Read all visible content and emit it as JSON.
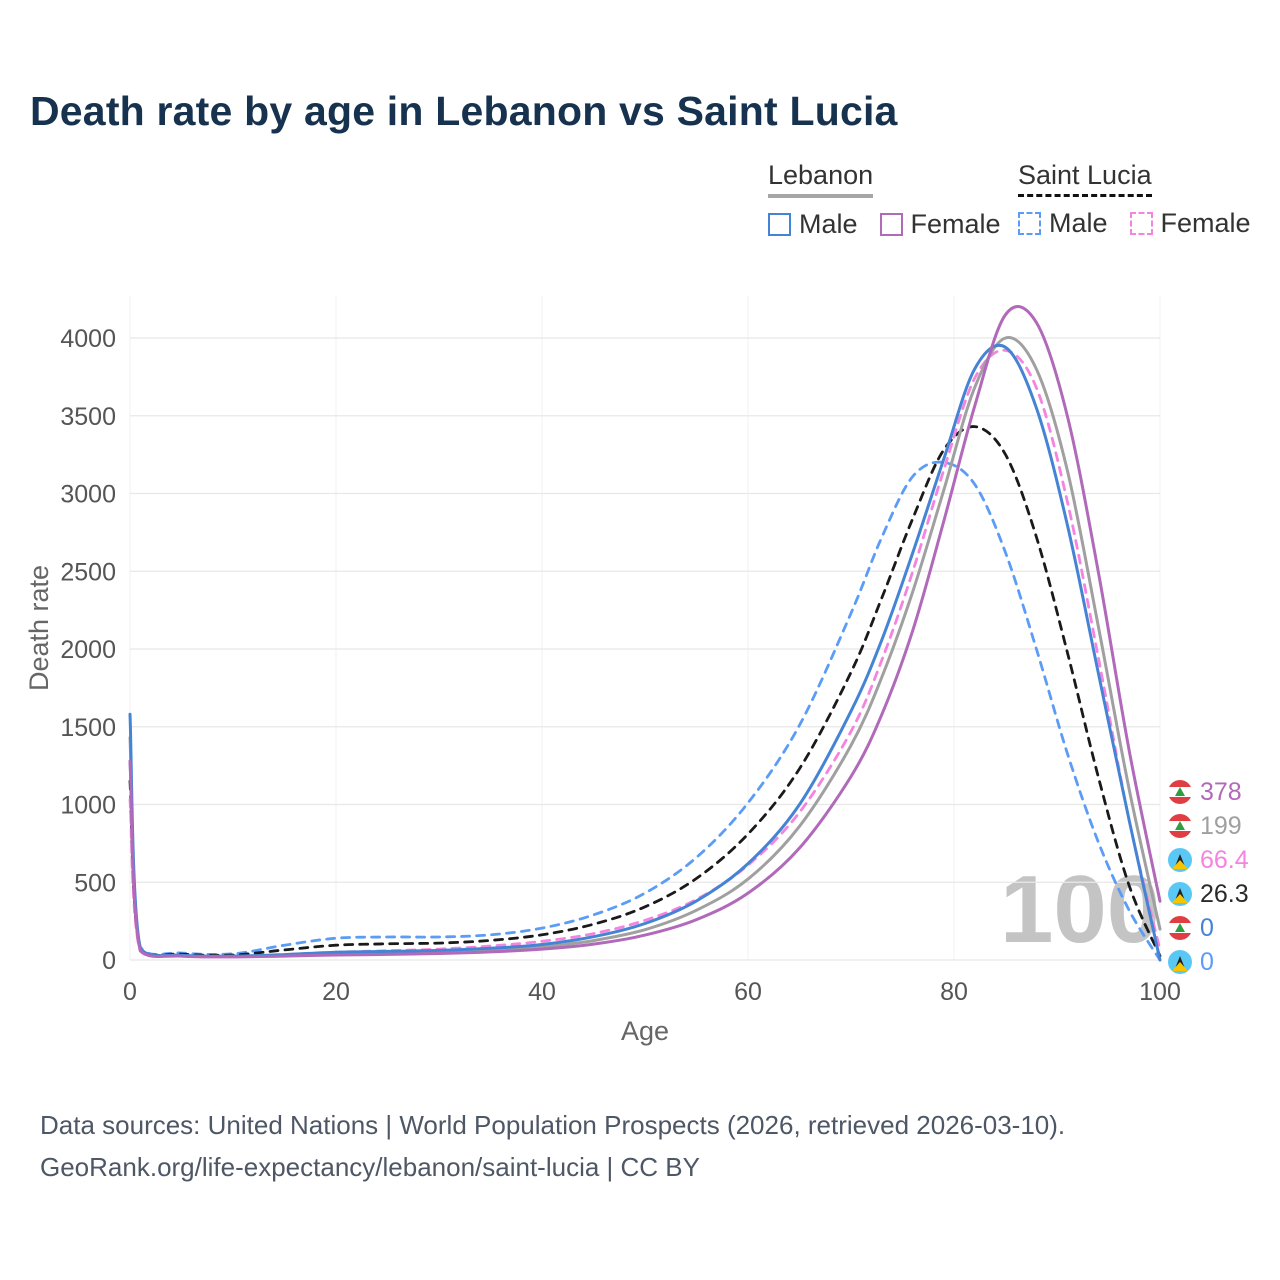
{
  "title": "Death rate by age in Lebanon vs Saint Lucia",
  "legend": {
    "lebanon": {
      "label": "Lebanon",
      "male": "Male",
      "female": "Female"
    },
    "saint_lucia": {
      "label": "Saint Lucia",
      "male": "Male",
      "female": "Female"
    }
  },
  "colors": {
    "title": "#16324f",
    "lebanon_male": "#4584d4",
    "lebanon_female": "#b169ba",
    "lebanon_both": "#a0a0a0",
    "saint_lucia_male": "#5b9cf6",
    "saint_lucia_female": "#f583e0",
    "saint_lucia_both": "#1a1a1a"
  },
  "chart_data": {
    "type": "line",
    "title": "Death rate by age in Lebanon vs Saint Lucia",
    "xlabel": "Age",
    "ylabel": "Death rate",
    "xlim": [
      0,
      100
    ],
    "ylim": [
      0,
      4300
    ],
    "xticks": [
      0,
      20,
      40,
      60,
      80,
      100
    ],
    "yticks": [
      0,
      500,
      1000,
      1500,
      2000,
      2500,
      3000,
      3500,
      4000
    ],
    "grid": true,
    "legend_position": "top-right",
    "x": [
      0,
      1,
      5,
      10,
      15,
      20,
      25,
      30,
      35,
      40,
      45,
      50,
      55,
      60,
      65,
      70,
      73,
      76,
      79,
      82,
      85,
      88,
      91,
      94,
      97,
      100
    ],
    "series": [
      {
        "id": "saint-lucia-male",
        "name": "Saint Lucia Male",
        "color": "#5b9cf6",
        "dashed": true,
        "values": [
          1270,
          85,
          45,
          40,
          95,
          140,
          148,
          148,
          162,
          205,
          290,
          430,
          660,
          1010,
          1510,
          2230,
          2720,
          3110,
          3200,
          3060,
          2620,
          2000,
          1330,
          760,
          320,
          0
        ]
      },
      {
        "id": "saint-lucia-both",
        "name": "Saint Lucia Both sexes",
        "color": "#1a1a1a",
        "dashed": true,
        "values": [
          1150,
          72,
          38,
          32,
          65,
          95,
          104,
          109,
          126,
          162,
          230,
          342,
          525,
          810,
          1230,
          1850,
          2330,
          2840,
          3280,
          3430,
          3250,
          2720,
          1980,
          1180,
          480,
          26.3
        ]
      },
      {
        "id": "saint-lucia-female",
        "name": "Saint Lucia Female",
        "color": "#f583e0",
        "dashed": true,
        "values": [
          1030,
          58,
          30,
          24,
          35,
          50,
          60,
          70,
          90,
          120,
          170,
          255,
          390,
          610,
          950,
          1470,
          1930,
          2500,
          3150,
          3740,
          3920,
          3680,
          2950,
          1950,
          900,
          66.4
        ]
      },
      {
        "id": "lebanon-both",
        "name": "Lebanon Both sexes",
        "color": "#a0a0a0",
        "dashed": false,
        "values": [
          1430,
          68,
          28,
          22,
          30,
          40,
          45,
          52,
          63,
          85,
          125,
          195,
          320,
          520,
          860,
          1380,
          1820,
          2370,
          3020,
          3680,
          4000,
          3800,
          3150,
          2150,
          1100,
          199
        ]
      },
      {
        "id": "lebanon-male",
        "name": "Lebanon Male",
        "color": "#4584d4",
        "dashed": false,
        "values": [
          1580,
          75,
          30,
          25,
          35,
          50,
          55,
          62,
          75,
          100,
          150,
          235,
          380,
          620,
          1000,
          1600,
          2060,
          2620,
          3220,
          3800,
          3940,
          3550,
          2800,
          1850,
          900,
          0
        ]
      },
      {
        "id": "lebanon-female",
        "name": "Lebanon Female",
        "color": "#b169ba",
        "dashed": false,
        "values": [
          1280,
          60,
          25,
          20,
          25,
          32,
          36,
          42,
          52,
          70,
          102,
          160,
          260,
          430,
          720,
          1180,
          1580,
          2120,
          2820,
          3560,
          4150,
          4100,
          3500,
          2500,
          1350,
          378
        ]
      }
    ]
  },
  "end_labels": [
    {
      "value": "378",
      "flag": "lebanon",
      "series": "lebanon-female",
      "color": "#b169ba"
    },
    {
      "value": "199",
      "flag": "lebanon",
      "series": "lebanon-both",
      "color": "#a0a0a0"
    },
    {
      "value": "66.4",
      "flag": "saintlucia",
      "series": "saint-lucia-female",
      "color": "#f583e0"
    },
    {
      "value": "26.3",
      "flag": "saintlucia",
      "series": "saint-lucia-both",
      "color": "#2a2a2a"
    },
    {
      "value": "0",
      "flag": "lebanon",
      "series": "lebanon-male",
      "color": "#4584d4"
    },
    {
      "value": "0",
      "flag": "saintlucia",
      "series": "saint-lucia-male",
      "color": "#5b9cf6"
    }
  ],
  "age_indicator": "100",
  "footer": {
    "line1": "Data sources: United Nations | World Population Prospects (2026, retrieved 2026-03-10).",
    "line2": "GeoRank.org/life-expectancy/lebanon/saint-lucia | CC BY"
  }
}
